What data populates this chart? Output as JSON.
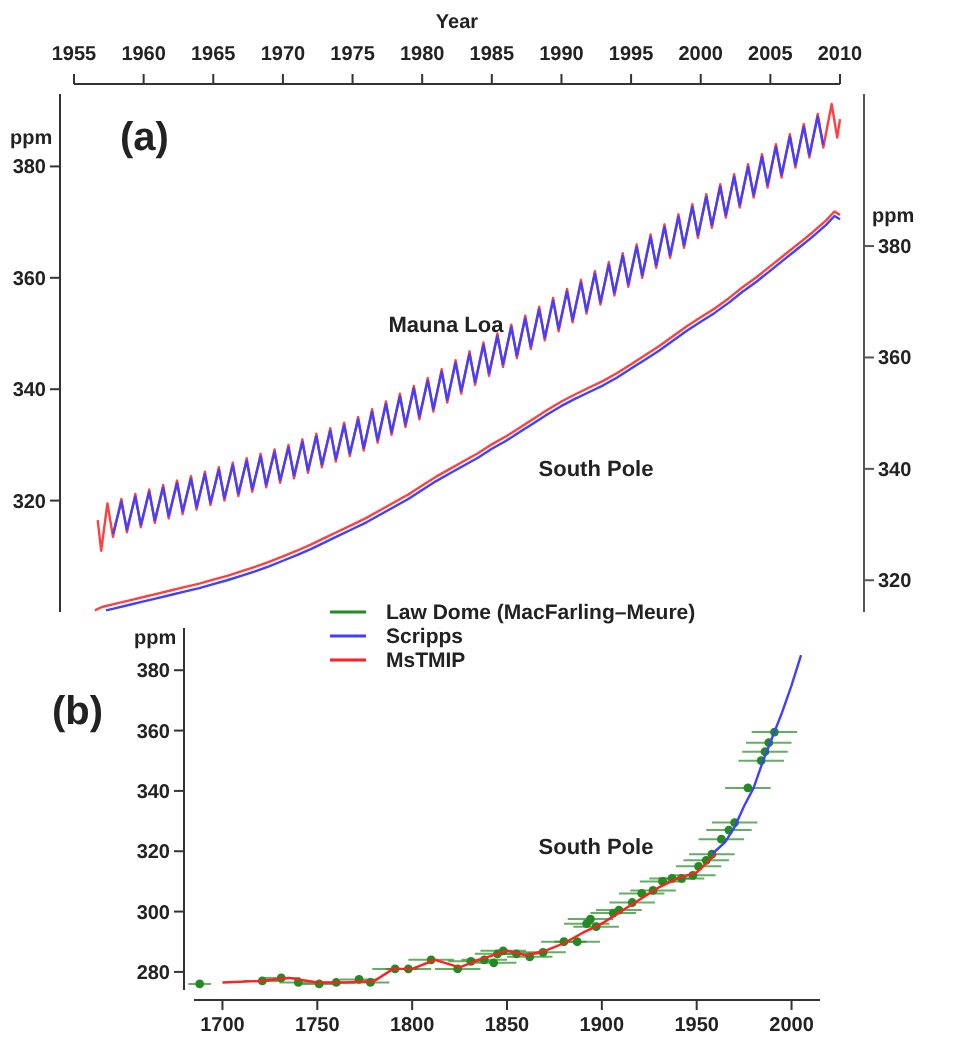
{
  "chart_data": [
    {
      "type": "line",
      "title": "(a)",
      "xlabel": "Year",
      "ylabel": "ppm",
      "y2label": "ppm",
      "xlim": [
        1955,
        2010
      ],
      "xticks": [
        1955,
        1960,
        1965,
        1970,
        1975,
        1980,
        1985,
        1990,
        1995,
        2000,
        2005,
        2010
      ],
      "ylim": [
        300,
        393
      ],
      "yticks": [
        320,
        340,
        360,
        380
      ],
      "y2lim": [
        314.3,
        407.3
      ],
      "y2ticks": [
        320,
        340,
        360,
        380
      ],
      "annotations": [
        "Mauna Loa",
        "South Pole"
      ],
      "series": [
        {
          "color": "#ff4040",
          "x": [
            1956.7,
            1956.95,
            1957.4,
            1957.8,
            1958.4,
            1958.8,
            1959.4,
            1959.8,
            1960.4,
            1960.8,
            1961.4,
            1961.8,
            1962.4,
            1962.8,
            1963.4,
            1963.8,
            1964.4,
            1964.8,
            1965.4,
            1965.8,
            1966.4,
            1966.8,
            1967.4,
            1967.8,
            1968.4,
            1968.8,
            1969.4,
            1969.8,
            1970.4,
            1970.8,
            1971.4,
            1971.8,
            1972.4,
            1972.8,
            1973.4,
            1973.8,
            1974.4,
            1974.8,
            1975.4,
            1975.8,
            1976.4,
            1976.8,
            1977.4,
            1977.8,
            1978.4,
            1978.8,
            1979.4,
            1979.8,
            1980.4,
            1980.8,
            1981.4,
            1981.8,
            1982.4,
            1982.8,
            1983.4,
            1983.8,
            1984.4,
            1984.8,
            1985.4,
            1985.8,
            1986.4,
            1986.8,
            1987.4,
            1987.8,
            1988.4,
            1988.8,
            1989.4,
            1989.8,
            1990.4,
            1990.8,
            1991.4,
            1991.8,
            1992.4,
            1992.8,
            1993.4,
            1993.8,
            1994.4,
            1994.8,
            1995.4,
            1995.8,
            1996.4,
            1996.8,
            1997.4,
            1997.8,
            1998.4,
            1998.8,
            1999.4,
            1999.8,
            2000.4,
            2000.8,
            2001.4,
            2001.8,
            2002.4,
            2002.8,
            2003.4,
            2003.8,
            2004.4,
            2004.8,
            2005.4,
            2005.8,
            2006.4,
            2006.8,
            2007.4,
            2007.8,
            2008.4,
            2008.8,
            2009.4,
            2009.8,
            2010
          ],
          "values": [
            316.5,
            311,
            319.5,
            313.5,
            320.3,
            314.3,
            321.2,
            315.2,
            322,
            316,
            322.8,
            316.8,
            323.6,
            317.6,
            324.4,
            318.4,
            325.2,
            319.2,
            326,
            320,
            326.8,
            320.8,
            327.6,
            321.6,
            328.4,
            322.4,
            329.2,
            323.2,
            330,
            324,
            331,
            325,
            332,
            326,
            333,
            327,
            334,
            328,
            335,
            329,
            336.4,
            330.4,
            337.8,
            331.8,
            339.2,
            333.2,
            340.6,
            334.6,
            342,
            336,
            343.6,
            337.6,
            345.2,
            339.2,
            346.8,
            340.8,
            348.4,
            342.4,
            350,
            344,
            351.6,
            345.6,
            353.2,
            347.2,
            354.8,
            348.8,
            356.4,
            350.4,
            358,
            352,
            359.6,
            353.6,
            361.2,
            355.2,
            362.8,
            356.8,
            364.4,
            358.4,
            366,
            360,
            367.8,
            361.8,
            369.6,
            363.6,
            371.4,
            365.4,
            373.2,
            367.2,
            375,
            369,
            376.8,
            370.8,
            378.6,
            372.6,
            380.4,
            374.4,
            382.2,
            376.2,
            384,
            378,
            385.8,
            379.8,
            387.6,
            381.6,
            389.4,
            383.4,
            391.2,
            385.2,
            388.5
          ]
        },
        {
          "color": "#4040ff",
          "x": [
            1957.8,
            1958.4,
            1958.8,
            1959.4,
            1959.8,
            1960.4,
            1960.8,
            1961.4,
            1961.8,
            1962.4,
            1962.8,
            1963.4,
            1963.8,
            1964.4,
            1964.8,
            1965.4,
            1965.8,
            1966.4,
            1966.8,
            1967.4,
            1967.8,
            1968.4,
            1968.8,
            1969.4,
            1969.8,
            1970.4,
            1970.8,
            1971.4,
            1971.8,
            1972.4,
            1972.8,
            1973.4,
            1973.8,
            1974.4,
            1974.8,
            1975.4,
            1975.8,
            1976.4,
            1976.8,
            1977.4,
            1977.8,
            1978.4,
            1978.8,
            1979.4,
            1979.8,
            1980.4,
            1980.8,
            1981.4,
            1981.8,
            1982.4,
            1982.8,
            1983.4,
            1983.8,
            1984.4,
            1984.8,
            1985.4,
            1985.8,
            1986.4,
            1986.8,
            1987.4,
            1987.8,
            1988.4,
            1988.8,
            1989.4,
            1989.8,
            1990.4,
            1990.8,
            1991.4,
            1991.8,
            1992.4,
            1992.8,
            1993.4,
            1993.8,
            1994.4,
            1994.8,
            1995.4,
            1995.8,
            1996.4,
            1996.8,
            1997.4,
            1997.8,
            1998.4,
            1998.8,
            1999.4,
            1999.8,
            2000.4,
            2000.8,
            2001.4,
            2001.8,
            2002.4,
            2002.8,
            2003.4,
            2003.8,
            2004.4,
            2004.8,
            2005.4,
            2005.8,
            2006.4,
            2006.8,
            2007.4,
            2007.8,
            2008.4,
            2008.8
          ],
          "values": [
            314,
            319.8,
            314.8,
            320.7,
            315.7,
            321.5,
            316.5,
            322.3,
            317.3,
            323.1,
            318.1,
            323.9,
            318.9,
            324.7,
            319.7,
            325.5,
            320.5,
            326.3,
            321.3,
            327.1,
            322.1,
            327.9,
            322.9,
            328.7,
            323.7,
            329.5,
            324.5,
            330.5,
            325.5,
            331.5,
            326.5,
            332.5,
            327.5,
            333.5,
            328.5,
            334.5,
            329.5,
            335.9,
            330.9,
            337.3,
            332.3,
            338.7,
            333.7,
            340.1,
            335.1,
            341.5,
            336.5,
            343.1,
            338.1,
            344.7,
            339.7,
            346.3,
            341.3,
            347.9,
            342.9,
            349.5,
            344.5,
            351.1,
            346.1,
            352.7,
            347.7,
            354.3,
            349.3,
            355.9,
            350.9,
            357.5,
            352.5,
            359.1,
            354.1,
            360.7,
            355.7,
            362.3,
            357.3,
            363.9,
            358.9,
            365.5,
            360.5,
            367.3,
            362.3,
            369.1,
            364.1,
            370.9,
            365.9,
            372.7,
            367.7,
            374.5,
            369.5,
            376.3,
            371.3,
            378.1,
            373.1,
            379.9,
            374.9,
            381.7,
            376.7,
            383.5,
            378.5,
            385.3,
            380.3,
            387.1,
            382.1,
            388.9,
            383.9
          ]
        },
        {
          "color": "#ff4040",
          "axis": "y2",
          "x": [
            1956.5,
            1957,
            1958,
            1959,
            1960,
            1961,
            1962,
            1963,
            1964,
            1965,
            1966,
            1967,
            1968,
            1969,
            1970,
            1971,
            1972,
            1973,
            1974,
            1975,
            1976,
            1977,
            1978,
            1979,
            1980,
            1981,
            1982,
            1983,
            1984,
            1985,
            1986,
            1987,
            1988,
            1989,
            1990,
            1991,
            1992,
            1993,
            1994,
            1995,
            1996,
            1997,
            1998,
            1999,
            2000,
            2001,
            2002,
            2003,
            2004,
            2005,
            2006,
            2007,
            2008,
            2009,
            2009.6,
            2010
          ],
          "values": [
            314.6,
            315.2,
            315.8,
            316.4,
            317,
            317.6,
            318.2,
            318.8,
            319.4,
            320.1,
            320.8,
            321.6,
            322.4,
            323.3,
            324.3,
            325.3,
            326.4,
            327.6,
            328.8,
            330,
            331.2,
            332.6,
            334,
            335.4,
            337,
            338.6,
            340,
            341.4,
            342.8,
            344.4,
            345.8,
            347.4,
            349,
            350.6,
            352.1,
            353.4,
            354.6,
            355.8,
            357.2,
            358.8,
            360.4,
            362,
            363.8,
            365.6,
            367.2,
            368.8,
            370.6,
            372.6,
            374.4,
            376.4,
            378.4,
            380.4,
            382.4,
            384.6,
            386.2,
            385.6
          ]
        },
        {
          "color": "#4040ff",
          "axis": "y2",
          "x": [
            1957.3,
            1958,
            1959,
            1960,
            1961,
            1962,
            1963,
            1964,
            1965,
            1966,
            1967,
            1968,
            1969,
            1970,
            1971,
            1972,
            1973,
            1974,
            1975,
            1976,
            1977,
            1978,
            1979,
            1980,
            1981,
            1982,
            1983,
            1984,
            1985,
            1986,
            1987,
            1988,
            1989,
            1990,
            1991,
            1992,
            1993,
            1994,
            1995,
            1996,
            1997,
            1998,
            1999,
            2000,
            2001,
            2002,
            2003,
            2004,
            2005,
            2006,
            2007,
            2008,
            2009,
            2009.6,
            2010
          ],
          "values": [
            314.6,
            315,
            315.6,
            316.2,
            316.8,
            317.4,
            318,
            318.6,
            319.3,
            320,
            320.8,
            321.6,
            322.5,
            323.5,
            324.5,
            325.6,
            326.8,
            328,
            329.2,
            330.4,
            331.8,
            333.2,
            334.6,
            336.2,
            337.8,
            339.2,
            340.6,
            342,
            343.6,
            345,
            346.6,
            348.2,
            349.8,
            351.3,
            352.6,
            353.8,
            355,
            356.4,
            358,
            359.6,
            361.2,
            363,
            364.8,
            366.4,
            368,
            369.8,
            371.8,
            373.6,
            375.6,
            377.6,
            379.6,
            381.6,
            383.8,
            385.4,
            384.8
          ]
        }
      ]
    },
    {
      "type": "line",
      "title": "(b)",
      "ylabel": "ppm",
      "legend": "top",
      "xlim": [
        1685,
        2015
      ],
      "xticks": [
        1700,
        1750,
        1800,
        1850,
        1900,
        1950,
        2000
      ],
      "ylim": [
        274,
        394
      ],
      "yticks": [
        280,
        300,
        320,
        340,
        360,
        380
      ],
      "annotations": [
        "South Pole"
      ],
      "series": [
        {
          "name": "Law Dome (MacFarling–Meure)",
          "type": "scatter",
          "marker": "circle",
          "color": "#228b22",
          "x": [
            1688,
            1721,
            1731,
            1740,
            1751,
            1760,
            1772,
            1778,
            1791,
            1798,
            1810,
            1824,
            1831,
            1838,
            1843,
            1845,
            1848,
            1855,
            1862,
            1869,
            1880,
            1887,
            1892,
            1894,
            1897,
            1906,
            1909,
            1916,
            1921,
            1927,
            1932,
            1937,
            1942,
            1948,
            1951,
            1955,
            1958,
            1963,
            1967,
            1970,
            1977,
            1984,
            1986,
            1988,
            1991
          ],
          "values": [
            276,
            277,
            278,
            276.5,
            276,
            276.5,
            277.5,
            276.5,
            281,
            281,
            284,
            281,
            283.5,
            284,
            283,
            286,
            287,
            286,
            285,
            286.5,
            290,
            290,
            296,
            297.5,
            295,
            299.5,
            300.5,
            303,
            306,
            307,
            310,
            311,
            311,
            312,
            315,
            317,
            319,
            324,
            327,
            329.5,
            341,
            350,
            353,
            356,
            359.5
          ],
          "xerrors": [
            6,
            10,
            10,
            10,
            10,
            10,
            10,
            10,
            12,
            12,
            12,
            12,
            12,
            12,
            12,
            12,
            12,
            12,
            12,
            12,
            12,
            12,
            12,
            12,
            12,
            12,
            12,
            12,
            12,
            12,
            12,
            12,
            12,
            12,
            12,
            12,
            12,
            12,
            12,
            12,
            12,
            12,
            12,
            12,
            12
          ]
        },
        {
          "name": "Scripps",
          "color": "#4040ff",
          "x": [
            1958,
            1965,
            1970,
            1975,
            1980,
            1985,
            1990,
            1995,
            2000,
            2005
          ],
          "values": [
            319,
            323,
            328,
            335,
            341,
            350,
            358,
            366,
            375,
            385
          ]
        },
        {
          "name": "MsTMIP",
          "color": "#ff2020",
          "x": [
            1700,
            1720,
            1735,
            1750,
            1765,
            1780,
            1790,
            1800,
            1812,
            1825,
            1835,
            1850,
            1860,
            1870,
            1880,
            1890,
            1900,
            1910,
            1920,
            1930,
            1940,
            1950,
            1960
          ],
          "values": [
            276.5,
            277,
            278,
            276.5,
            276.5,
            277,
            281,
            281,
            284,
            281.5,
            284,
            287,
            285.5,
            287,
            289.5,
            293,
            296,
            300,
            304,
            308,
            311,
            313,
            319
          ]
        }
      ]
    }
  ]
}
